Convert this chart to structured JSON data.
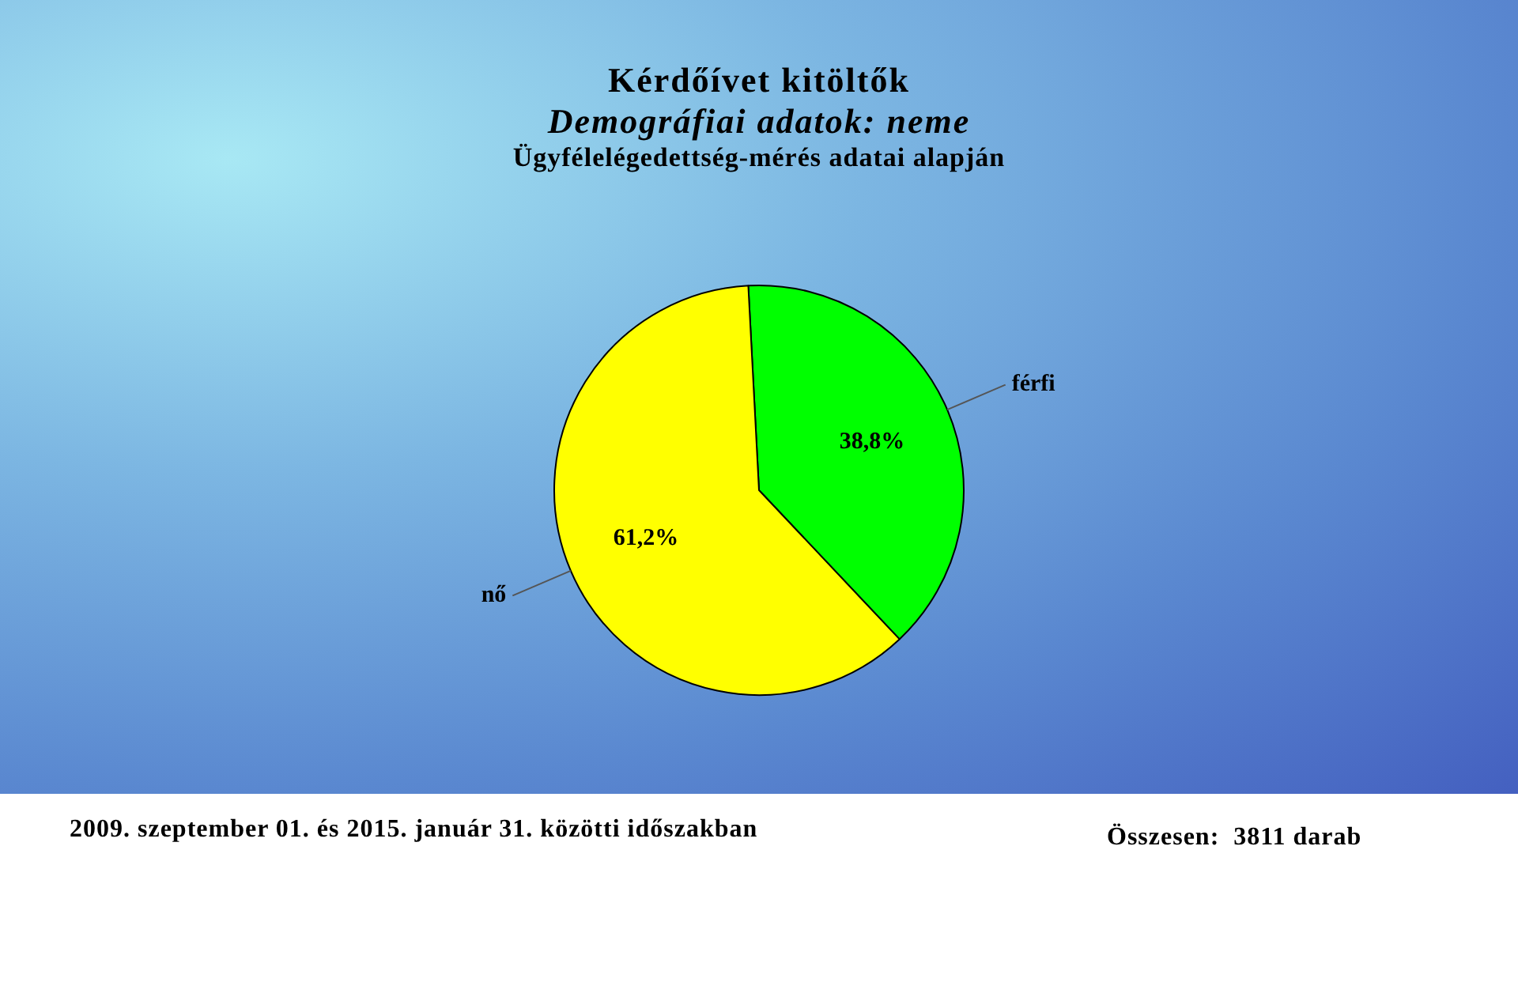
{
  "chart_data": {
    "type": "pie",
    "title": "Kérdőívet kitöltők",
    "subtitle": "Demográfiai adatok: neme",
    "categories": [
      "férfi",
      "nő"
    ],
    "values": [
      38.8,
      61.2
    ],
    "colors": [
      "#00ff00",
      "#ffff00"
    ],
    "value_labels": [
      "38,8%",
      "61,2%"
    ],
    "legend": false,
    "annotations": [
      "Ügyfélelégedettség-mérés adatai alapján",
      "2009. szeptember 01. és 2015. január 31. közötti időszakban",
      "Összesen:  3811 darab"
    ]
  }
}
